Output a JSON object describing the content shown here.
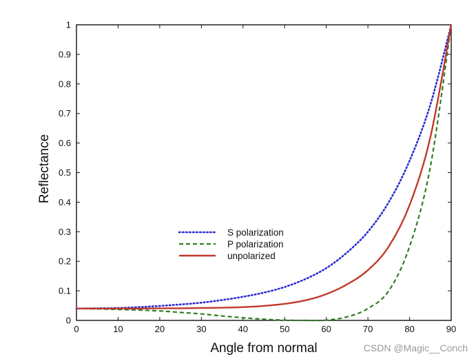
{
  "chart_data": {
    "type": "line",
    "title": "",
    "xlabel": "Angle from normal",
    "ylabel": "Reflectance",
    "xlim": [
      0,
      90
    ],
    "ylim": [
      0,
      1
    ],
    "xticks": [
      0,
      10,
      20,
      30,
      40,
      50,
      60,
      70,
      80,
      90
    ],
    "yticks": [
      0,
      0.1,
      0.2,
      0.3,
      0.4,
      0.5,
      0.6,
      0.7,
      0.8,
      0.9,
      1
    ],
    "ytick_labels": [
      "0",
      "0.1",
      "0.2",
      "0.3",
      "0.4",
      "0.5",
      "0.6",
      "0.7",
      "0.8",
      "0.9",
      "1"
    ],
    "grid": false,
    "legend_position": "lower-left",
    "x": [
      0,
      5,
      10,
      15,
      20,
      25,
      30,
      35,
      40,
      45,
      50,
      55,
      60,
      65,
      70,
      75,
      80,
      85,
      90
    ],
    "series": [
      {
        "name": "S polarization",
        "style": "dotted",
        "color": "#2a2ad0",
        "values": [
          0.04,
          0.041,
          0.042,
          0.045,
          0.049,
          0.054,
          0.06,
          0.069,
          0.08,
          0.094,
          0.113,
          0.14,
          0.177,
          0.23,
          0.3,
          0.4,
          0.54,
          0.73,
          1.0
        ]
      },
      {
        "name": "P polarization",
        "style": "dashed",
        "color": "#2e7d1e",
        "values": [
          0.04,
          0.039,
          0.037,
          0.035,
          0.032,
          0.027,
          0.022,
          0.015,
          0.009,
          0.004,
          0.001,
          0.0,
          0.001,
          0.012,
          0.04,
          0.1,
          0.25,
          0.52,
          1.0
        ]
      },
      {
        "name": "unpolarized",
        "style": "solid",
        "color": "#c0392b",
        "values": [
          0.04,
          0.04,
          0.04,
          0.04,
          0.041,
          0.041,
          0.042,
          0.043,
          0.045,
          0.049,
          0.056,
          0.068,
          0.089,
          0.122,
          0.17,
          0.25,
          0.39,
          0.62,
          1.0
        ]
      }
    ]
  },
  "watermark": "CSDN @Magic__Conch"
}
